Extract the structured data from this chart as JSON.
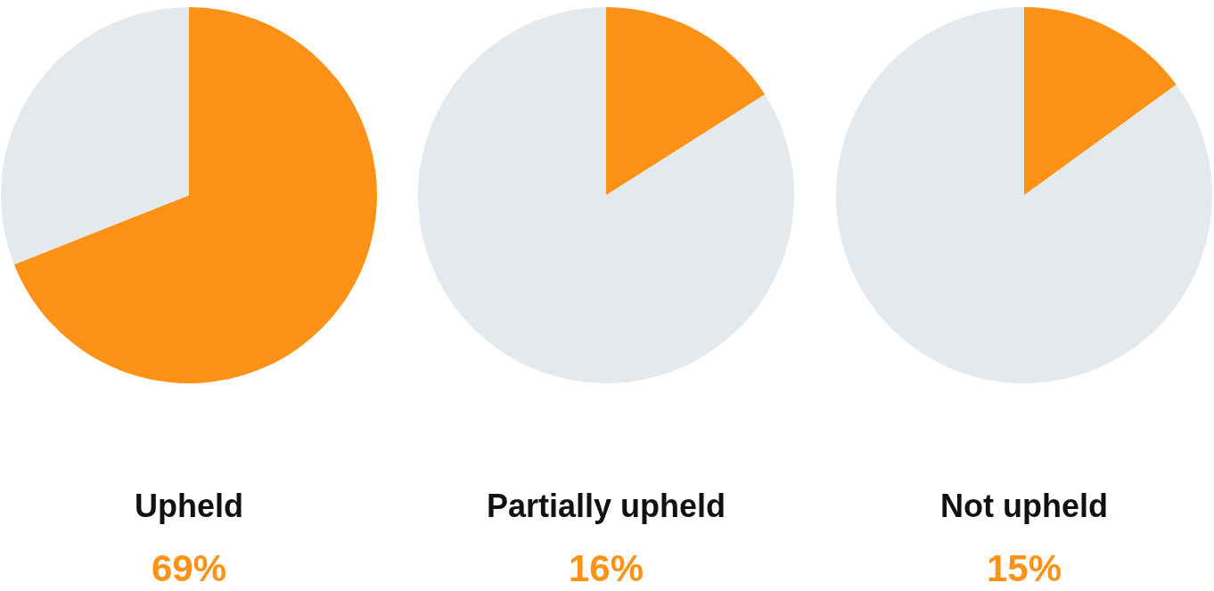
{
  "chart_data": [
    {
      "type": "pie",
      "title": "Upheld",
      "subtitle": "69%",
      "categories": [
        null,
        null
      ],
      "values": [
        69,
        31
      ],
      "colors": [
        "#fd9216",
        "#e4e9ed"
      ]
    },
    {
      "type": "pie",
      "title": "Partially upheld",
      "subtitle": "16%",
      "categories": [
        null,
        null
      ],
      "values": [
        16,
        84
      ],
      "colors": [
        "#fd9216",
        "#e4e9ed"
      ]
    },
    {
      "type": "pie",
      "title": "Not upheld",
      "subtitle": "15%",
      "categories": [
        null,
        null
      ],
      "values": [
        15,
        85
      ],
      "colors": [
        "#fd9216",
        "#e4e9ed"
      ]
    }
  ]
}
